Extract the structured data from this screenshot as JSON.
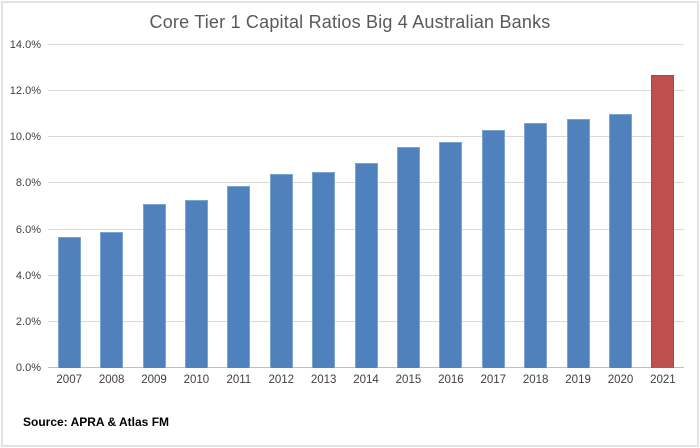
{
  "chart_data": {
    "type": "bar",
    "title": "Core Tier 1 Capital Ratios Big 4 Australian Banks",
    "source": "Source: APRA & Atlas FM",
    "categories": [
      "2007",
      "2008",
      "2009",
      "2010",
      "2011",
      "2012",
      "2013",
      "2014",
      "2015",
      "2016",
      "2017",
      "2018",
      "2019",
      "2020",
      "2021"
    ],
    "values": [
      5.7,
      5.9,
      7.1,
      7.3,
      7.9,
      8.4,
      8.5,
      8.9,
      9.6,
      9.8,
      10.3,
      10.6,
      10.8,
      11.0,
      12.7
    ],
    "highlight_index": 14,
    "ylim": [
      0,
      14
    ],
    "ytick_step": 2,
    "ytick_labels": [
      "0.0%",
      "2.0%",
      "4.0%",
      "6.0%",
      "8.0%",
      "10.0%",
      "12.0%",
      "14.0%"
    ],
    "xlabel": "",
    "ylabel": "",
    "grid": true,
    "legend": false,
    "colors": {
      "bar": "#4f81bd",
      "bar_border": "#7ba3d4",
      "highlight": "#c0504d",
      "highlight_border": "#ab4542",
      "gridline": "#d9d9d9",
      "axis_line": "#bfbfbf",
      "title_text": "#595959",
      "axis_text": "#404040",
      "background": "#ffffff",
      "canvas_border": "#e2e2e2"
    }
  }
}
